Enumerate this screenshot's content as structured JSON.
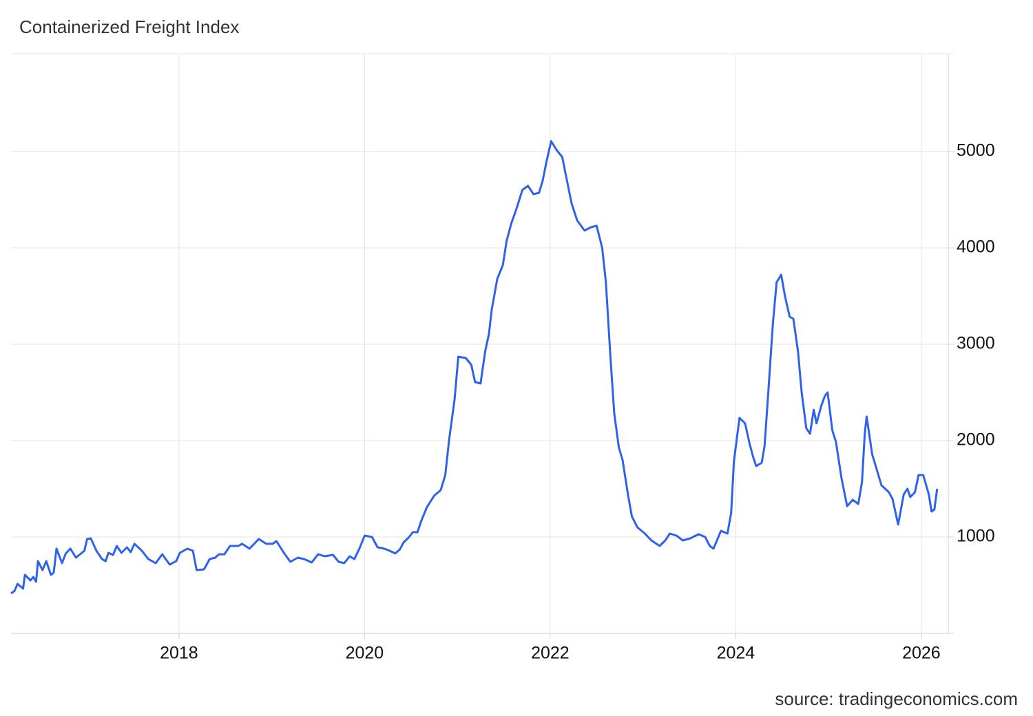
{
  "chart_data": {
    "type": "line",
    "title": "Containerized Freight Index",
    "source": "source: tradingeconomics.com",
    "color": "#2f62eb",
    "grid": true,
    "xlim": [
      2016.19,
      2026.29
    ],
    "xticks": [
      2018,
      2020,
      2022,
      2024,
      2026
    ],
    "ylim": [
      0,
      6000
    ],
    "yticks": [
      1000,
      2000,
      3000,
      4000,
      5000
    ],
    "x": [
      2016.19,
      2016.23,
      2016.26,
      2016.32,
      2016.34,
      2016.4,
      2016.43,
      2016.46,
      2016.48,
      2016.53,
      2016.57,
      2016.62,
      2016.65,
      2016.68,
      2016.74,
      2016.78,
      2016.83,
      2016.89,
      2016.98,
      2017.01,
      2017.05,
      2017.11,
      2017.17,
      2017.21,
      2017.24,
      2017.29,
      2017.33,
      2017.38,
      2017.44,
      2017.48,
      2017.52,
      2017.6,
      2017.67,
      2017.75,
      2017.82,
      2017.9,
      2017.97,
      2018.01,
      2018.09,
      2018.15,
      2018.19,
      2018.27,
      2018.33,
      2018.39,
      2018.43,
      2018.49,
      2018.55,
      2018.64,
      2018.68,
      2018.76,
      2018.86,
      2018.94,
      2019.01,
      2019.05,
      2019.13,
      2019.2,
      2019.28,
      2019.35,
      2019.43,
      2019.5,
      2019.57,
      2019.66,
      2019.72,
      2019.78,
      2019.84,
      2019.89,
      2019.95,
      2020.0,
      2020.08,
      2020.14,
      2020.21,
      2020.27,
      2020.33,
      2020.38,
      2020.42,
      2020.48,
      2020.52,
      2020.57,
      2020.61,
      2020.67,
      2020.75,
      2020.82,
      2020.87,
      2020.91,
      2020.97,
      2021.01,
      2021.09,
      2021.15,
      2021.19,
      2021.25,
      2021.3,
      2021.34,
      2021.37,
      2021.43,
      2021.49,
      2021.53,
      2021.58,
      2021.64,
      2021.7,
      2021.76,
      2021.82,
      2021.88,
      2021.92,
      2021.96,
      2022.01,
      2022.07,
      2022.13,
      2022.17,
      2022.23,
      2022.29,
      2022.37,
      2022.44,
      2022.5,
      2022.56,
      2022.6,
      2022.65,
      2022.69,
      2022.74,
      2022.78,
      2022.84,
      2022.88,
      2022.94,
      2023.02,
      2023.09,
      2023.18,
      2023.24,
      2023.29,
      2023.36,
      2023.43,
      2023.51,
      2023.6,
      2023.67,
      2023.72,
      2023.76,
      2023.84,
      2023.91,
      2023.95,
      2023.98,
      2024.04,
      2024.1,
      2024.15,
      2024.19,
      2024.22,
      2024.28,
      2024.31,
      2024.35,
      2024.4,
      2024.44,
      2024.49,
      2024.53,
      2024.58,
      2024.62,
      2024.67,
      2024.71,
      2024.76,
      2024.8,
      2024.84,
      2024.87,
      2024.92,
      2024.96,
      2024.99,
      2025.04,
      2025.08,
      2025.14,
      2025.2,
      2025.26,
      2025.32,
      2025.36,
      2025.39,
      2025.41,
      2025.47,
      2025.51,
      2025.57,
      2025.65,
      2025.69,
      2025.75,
      2025.81,
      2025.85,
      2025.88,
      2025.93,
      2025.97,
      2026.02,
      2026.08,
      2026.11,
      2026.14,
      2026.17
    ],
    "values": [
      414,
      443,
      514,
      464,
      607,
      550,
      586,
      536,
      750,
      657,
      750,
      607,
      629,
      879,
      729,
      829,
      879,
      786,
      857,
      979,
      986,
      857,
      771,
      750,
      836,
      814,
      907,
      836,
      893,
      843,
      929,
      857,
      771,
      729,
      821,
      714,
      750,
      836,
      879,
      857,
      657,
      664,
      771,
      786,
      821,
      821,
      907,
      907,
      929,
      879,
      979,
      929,
      929,
      957,
      836,
      743,
      786,
      771,
      736,
      821,
      800,
      814,
      743,
      729,
      800,
      771,
      893,
      1014,
      1000,
      893,
      879,
      857,
      829,
      871,
      943,
      1000,
      1050,
      1050,
      1164,
      1307,
      1429,
      1486,
      1643,
      2000,
      2429,
      2871,
      2857,
      2786,
      2607,
      2593,
      2929,
      3107,
      3357,
      3679,
      3821,
      4071,
      4250,
      4414,
      4600,
      4643,
      4557,
      4571,
      4700,
      4893,
      5107,
      5014,
      4943,
      4750,
      4464,
      4286,
      4179,
      4214,
      4229,
      4000,
      3643,
      2857,
      2286,
      1929,
      1800,
      1429,
      1214,
      1100,
      1036,
      964,
      907,
      964,
      1036,
      1014,
      964,
      986,
      1029,
      1000,
      907,
      879,
      1064,
      1036,
      1250,
      1786,
      2236,
      2179,
      1964,
      1821,
      1736,
      1771,
      1943,
      2500,
      3214,
      3643,
      3721,
      3500,
      3286,
      3264,
      2929,
      2500,
      2129,
      2071,
      2321,
      2179,
      2357,
      2464,
      2500,
      2107,
      1986,
      1607,
      1321,
      1386,
      1343,
      1571,
      2071,
      2250,
      1857,
      1729,
      1536,
      1464,
      1393,
      1129,
      1443,
      1500,
      1414,
      1464,
      1643,
      1643,
      1443,
      1264,
      1286,
      1500
    ]
  }
}
